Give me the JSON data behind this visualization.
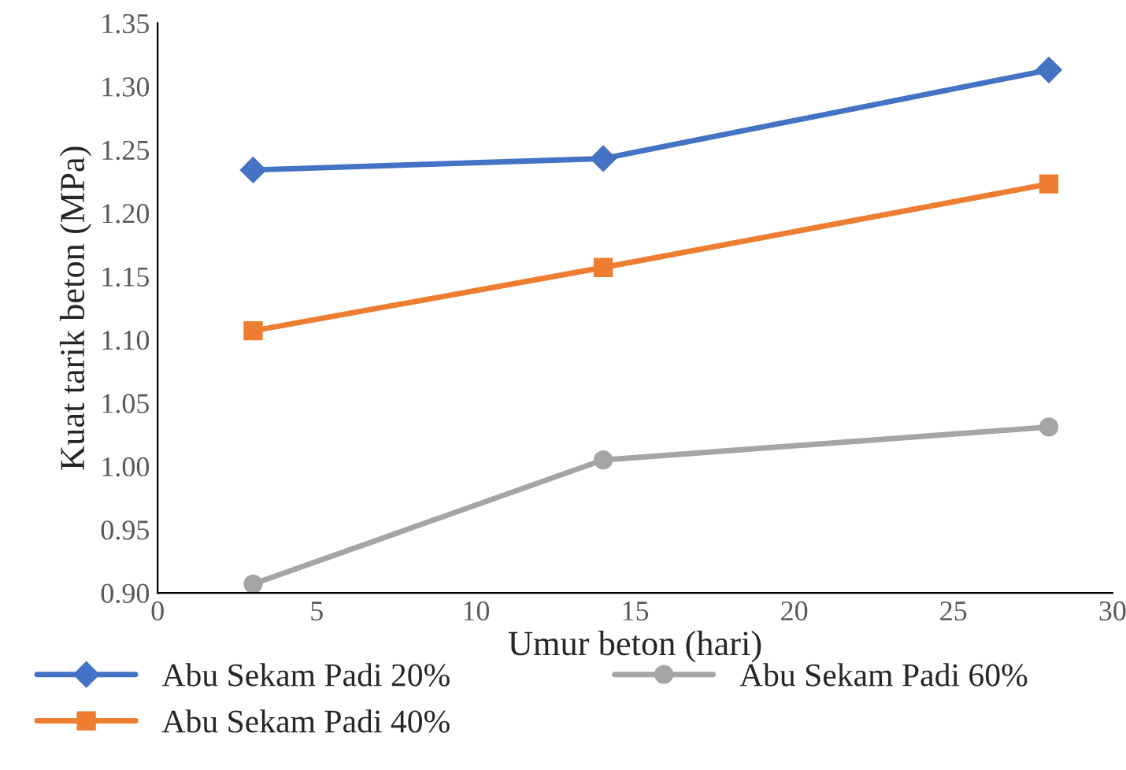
{
  "chart_data": {
    "type": "line",
    "xlabel": "Umur beton (hari)",
    "ylabel": "Kuat tarik beton (MPa)",
    "xlim": [
      0,
      30
    ],
    "xticks": [
      0,
      5,
      10,
      15,
      20,
      25,
      30
    ],
    "ylim": [
      0.9,
      1.35
    ],
    "yticks": [
      {
        "value": 0.9,
        "label": "0.90"
      },
      {
        "value": 0.95,
        "label": "0.95"
      },
      {
        "value": 1.0,
        "label": "1.00"
      },
      {
        "value": 1.05,
        "label": "1.05"
      },
      {
        "value": 1.1,
        "label": "1.10"
      },
      {
        "value": 1.15,
        "label": "1.15"
      },
      {
        "value": 1.2,
        "label": "1.20"
      },
      {
        "value": 1.25,
        "label": "1.25"
      },
      {
        "value": 1.3,
        "label": "1.30"
      },
      {
        "value": 1.35,
        "label": "1.35"
      }
    ],
    "x": [
      3,
      14,
      28
    ],
    "grid": false,
    "legend": "bottom",
    "series": [
      {
        "name": "Abu Sekam Padi 20%",
        "color": "#4472c4",
        "marker": "diamond",
        "values": [
          1.234,
          1.243,
          1.313
        ]
      },
      {
        "name": "Abu Sekam Padi 40%",
        "color": "#ed7d31",
        "marker": "square",
        "values": [
          1.107,
          1.157,
          1.223
        ]
      },
      {
        "name": "Abu Sekam Padi 60%",
        "color": "#a5a5a5",
        "marker": "circle",
        "values": [
          0.907,
          1.005,
          1.031
        ]
      }
    ]
  }
}
